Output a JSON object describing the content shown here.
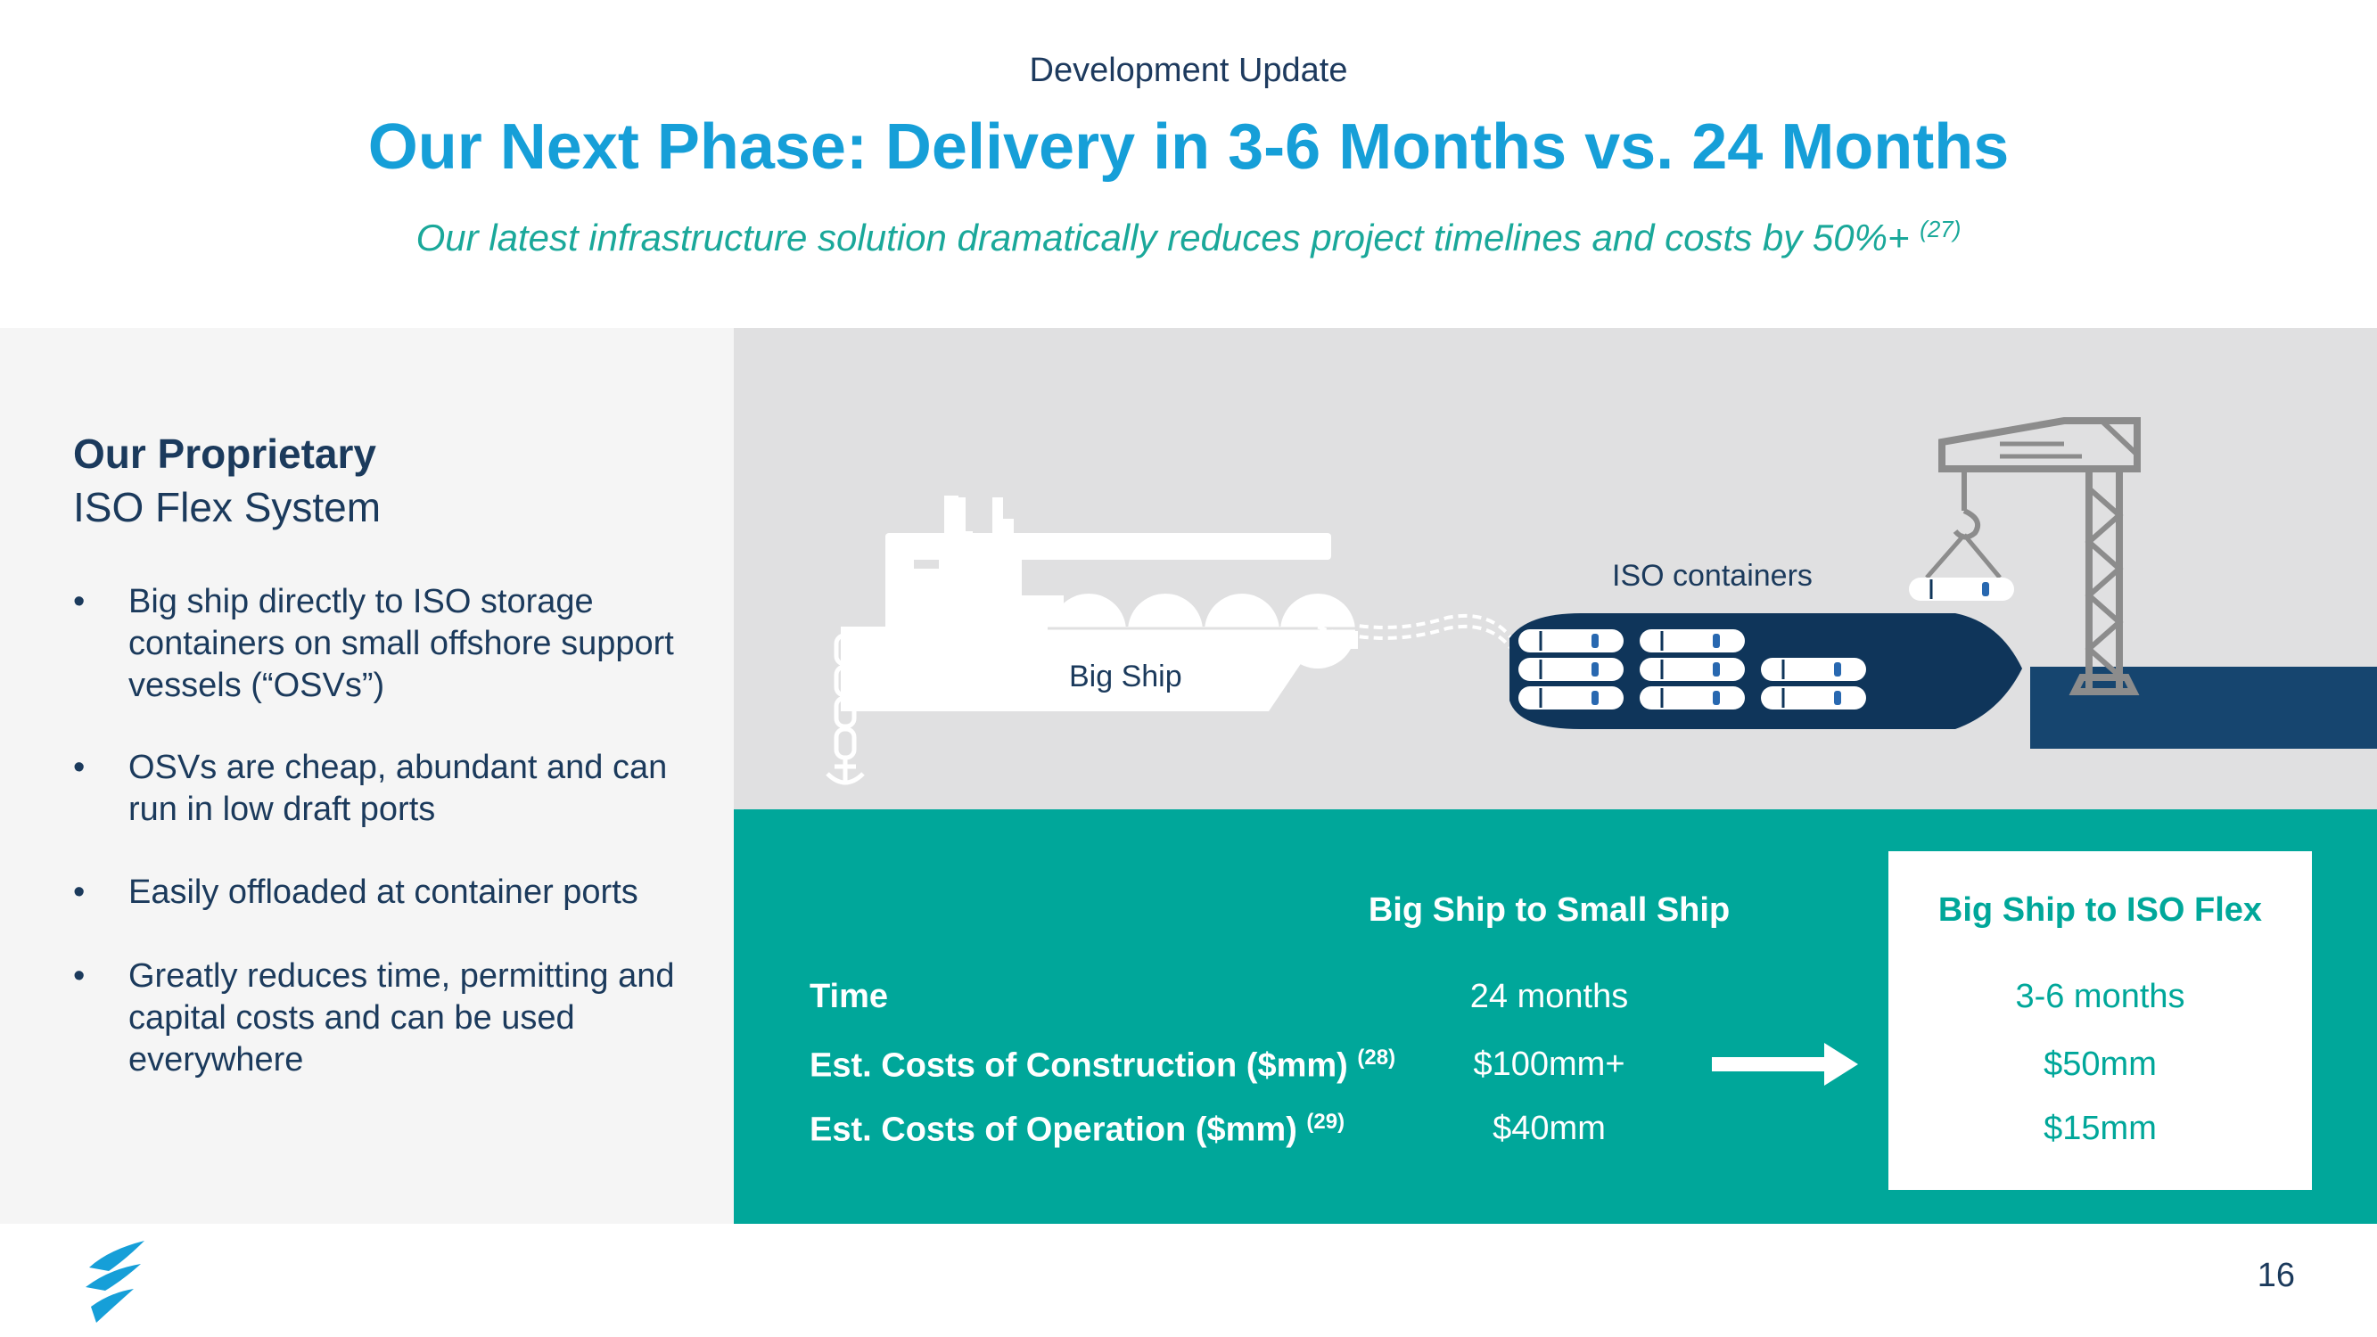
{
  "header": {
    "eyebrow": "Development Update",
    "title": "Our Next Phase: Delivery in 3-6 Months vs. 24 Months",
    "subtitle": "Our latest infrastructure solution dramatically reduces project timelines and costs by 50%+",
    "subtitle_note": "(27)"
  },
  "left_panel": {
    "heading_bold": "Our Proprietary",
    "heading_light": "ISO Flex System",
    "bullet_symbol": "•",
    "bullets": [
      "Big ship directly to ISO storage containers on small offshore support vessels (“OSVs”)",
      "OSVs are cheap, abundant and can run in low draft ports",
      "Easily offloaded at container ports",
      "Greatly reduces time, permitting and capital costs and can be used everywhere"
    ]
  },
  "illustration": {
    "big_ship_label": "Big Ship",
    "iso_containers_label": "ISO containers",
    "icons": [
      "lng-ship-icon",
      "anchor-chain-icon",
      "hose-icon",
      "osv-vessel-icon",
      "crane-icon",
      "iso-container-icon"
    ],
    "colors": {
      "navy": "#0f355a",
      "gray": "#8c8c8c",
      "dock": "#16456f"
    }
  },
  "comparison": {
    "col_small": "Big Ship to Small Ship",
    "col_iso": "Big Ship to ISO Flex",
    "rows": [
      {
        "label": "Time",
        "note": "",
        "small": "24 months",
        "iso": "3-6 months"
      },
      {
        "label": "Est. Costs of Construction ($mm)",
        "note": "(28)",
        "small": "$100mm+",
        "iso": "$50mm"
      },
      {
        "label": "Est. Costs of Operation ($mm)",
        "note": "(29)",
        "small": "$40mm",
        "iso": "$15mm"
      }
    ],
    "colors": {
      "teal": "#00a79a",
      "white": "#ffffff"
    }
  },
  "footer": {
    "page_number": "16",
    "logo_icon": "flame-logo-icon"
  }
}
